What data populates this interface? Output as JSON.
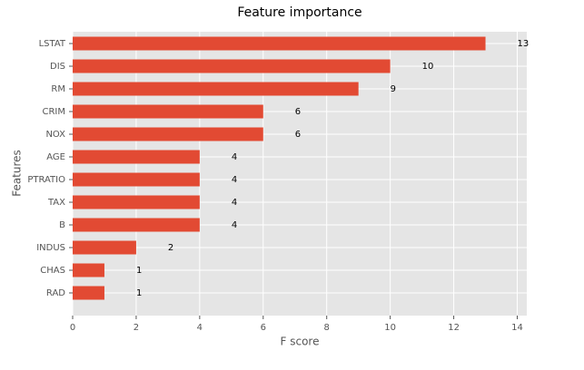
{
  "chart_data": {
    "type": "barh",
    "title": "Feature importance",
    "xlabel": "F score",
    "ylabel": "Features",
    "categories": [
      "LSTAT",
      "DIS",
      "RM",
      "CRIM",
      "NOX",
      "AGE",
      "PTRATIO",
      "TAX",
      "B",
      "INDUS",
      "CHAS",
      "RAD"
    ],
    "values": [
      13,
      10,
      9,
      6,
      6,
      4,
      4,
      4,
      4,
      2,
      1,
      1
    ],
    "color": "#e24a33",
    "xlim": [
      0,
      14.3
    ],
    "xticks": [
      0,
      2,
      4,
      6,
      8,
      10,
      12,
      14
    ],
    "grid": true
  }
}
